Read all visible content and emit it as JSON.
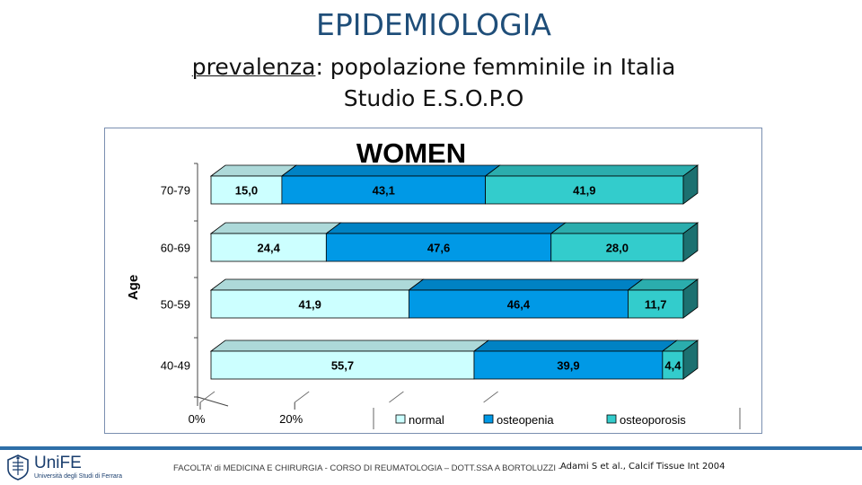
{
  "slide": {
    "title": "EPIDEMIOLOGIA",
    "subtitle_bold": "prevalenza",
    "subtitle_rest": ": popolazione femminile in Italia",
    "subtitle_line2": "Studio E.S.O.P.O"
  },
  "footer": {
    "logo_name": "UniFE",
    "logo_sub": "Università degli Studi di Ferrara",
    "text": "FACOLTA’ di MEDICINA E CHIRURGIA - CORSO DI REUMATOLOGIA – DOTT.SSA A BORTOLUZZI -",
    "reference": "Adami S et al., Calcif Tissue Int 2004",
    "accent_color": "#2e6fa8"
  },
  "chart_data": {
    "type": "bar",
    "orientation": "horizontal",
    "stacked": true,
    "percent": true,
    "title": "WOMEN",
    "ylabel": "Age",
    "categories": [
      "70-79",
      "60-69",
      "50-59",
      "40-49"
    ],
    "series": [
      {
        "name": "normal",
        "values": [
          15.0,
          24.4,
          41.9,
          55.7
        ],
        "labels": [
          "15,0",
          "24,4",
          "41,9",
          "55,7"
        ],
        "color": "#ccffff"
      },
      {
        "name": "osteopenia",
        "values": [
          43.1,
          47.6,
          46.4,
          39.9
        ],
        "labels": [
          "43,1",
          "47,6",
          "46,4",
          "39,9"
        ],
        "color": "#0099e6"
      },
      {
        "name": "osteoporosis",
        "values": [
          41.9,
          28.0,
          11.7,
          4.4
        ],
        "labels": [
          "41,9",
          "28,0",
          "11,7",
          "4,4"
        ],
        "color": "#33cccc"
      }
    ],
    "x_ticks": [
      "0%",
      "20%"
    ],
    "xlim": [
      0,
      100
    ],
    "legend_position": "bottom-right",
    "three_d": true
  }
}
